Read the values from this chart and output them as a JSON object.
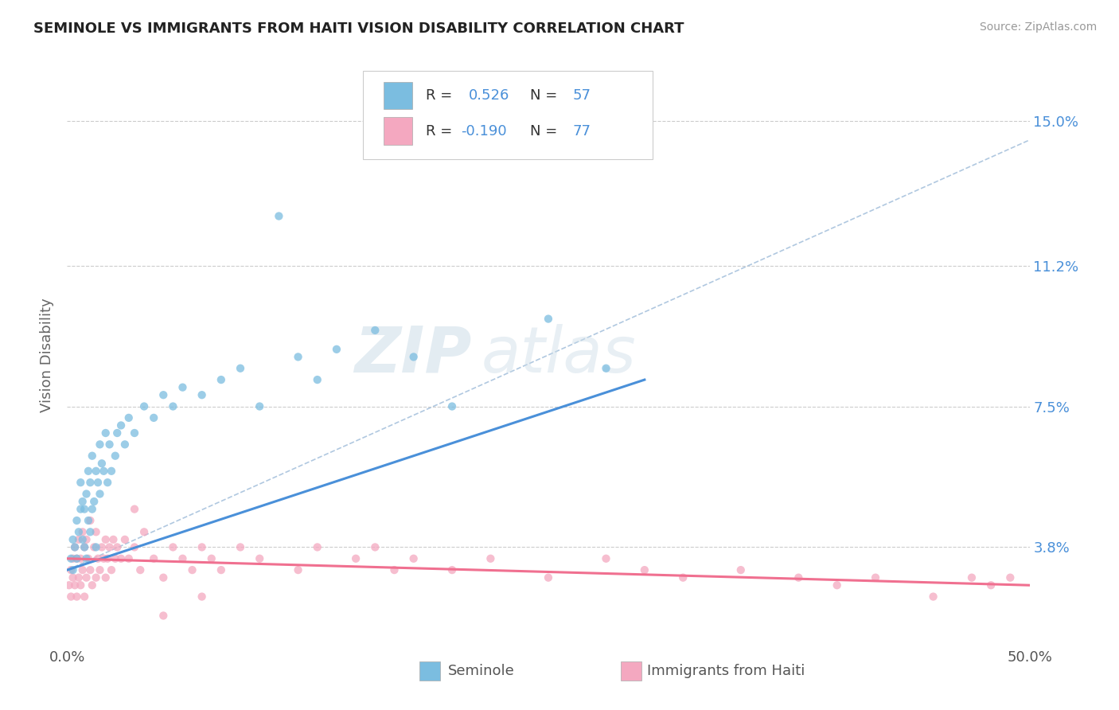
{
  "title": "SEMINOLE VS IMMIGRANTS FROM HAITI VISION DISABILITY CORRELATION CHART",
  "source": "Source: ZipAtlas.com",
  "ylabel": "Vision Disability",
  "xmin": 0.0,
  "xmax": 50.0,
  "ymin": 1.2,
  "ymax": 16.5,
  "yticks": [
    3.8,
    7.5,
    11.2,
    15.0
  ],
  "ytick_labels": [
    "3.8%",
    "7.5%",
    "11.2%",
    "15.0%"
  ],
  "gridline_y": [
    3.8,
    7.5,
    11.2,
    15.0
  ],
  "blue_color": "#7bbde0",
  "pink_color": "#f4a8c0",
  "blue_line_color": "#4a90d9",
  "pink_line_color": "#f07090",
  "dashed_line_color": "#b0c8e0",
  "watermark_zip": "ZIP",
  "watermark_atlas": "atlas",
  "seminole_x": [
    0.2,
    0.3,
    0.3,
    0.4,
    0.5,
    0.5,
    0.6,
    0.7,
    0.7,
    0.8,
    0.8,
    0.9,
    0.9,
    1.0,
    1.0,
    1.1,
    1.1,
    1.2,
    1.2,
    1.3,
    1.3,
    1.4,
    1.5,
    1.5,
    1.6,
    1.7,
    1.7,
    1.8,
    1.9,
    2.0,
    2.1,
    2.2,
    2.3,
    2.5,
    2.6,
    2.8,
    3.0,
    3.2,
    3.5,
    4.0,
    4.5,
    5.0,
    5.5,
    6.0,
    7.0,
    8.0,
    9.0,
    10.0,
    11.0,
    12.0,
    13.0,
    14.0,
    16.0,
    18.0,
    20.0,
    25.0,
    28.0
  ],
  "seminole_y": [
    3.5,
    3.2,
    4.0,
    3.8,
    3.5,
    4.5,
    4.2,
    4.8,
    5.5,
    4.0,
    5.0,
    3.8,
    4.8,
    3.5,
    5.2,
    4.5,
    5.8,
    4.2,
    5.5,
    4.8,
    6.2,
    5.0,
    3.8,
    5.8,
    5.5,
    5.2,
    6.5,
    6.0,
    5.8,
    6.8,
    5.5,
    6.5,
    5.8,
    6.2,
    6.8,
    7.0,
    6.5,
    7.2,
    6.8,
    7.5,
    7.2,
    7.8,
    7.5,
    8.0,
    7.8,
    8.2,
    8.5,
    7.5,
    12.5,
    8.8,
    8.2,
    9.0,
    9.5,
    8.8,
    7.5,
    9.8,
    8.5
  ],
  "haiti_x": [
    0.1,
    0.2,
    0.2,
    0.3,
    0.3,
    0.4,
    0.4,
    0.5,
    0.5,
    0.6,
    0.6,
    0.7,
    0.7,
    0.8,
    0.8,
    0.9,
    0.9,
    1.0,
    1.0,
    1.1,
    1.2,
    1.2,
    1.3,
    1.4,
    1.5,
    1.5,
    1.6,
    1.7,
    1.8,
    1.9,
    2.0,
    2.0,
    2.1,
    2.2,
    2.3,
    2.4,
    2.5,
    2.6,
    2.8,
    3.0,
    3.2,
    3.5,
    3.8,
    4.0,
    4.5,
    5.0,
    5.5,
    6.0,
    6.5,
    7.0,
    7.5,
    8.0,
    9.0,
    10.0,
    12.0,
    13.0,
    15.0,
    16.0,
    17.0,
    18.0,
    20.0,
    22.0,
    25.0,
    28.0,
    30.0,
    32.0,
    35.0,
    38.0,
    40.0,
    42.0,
    45.0,
    47.0,
    48.0,
    49.0,
    3.5,
    5.0,
    7.0
  ],
  "haiti_y": [
    2.8,
    2.5,
    3.2,
    3.0,
    3.5,
    2.8,
    3.8,
    2.5,
    3.5,
    3.0,
    4.0,
    2.8,
    3.5,
    3.2,
    4.2,
    2.5,
    3.8,
    3.0,
    4.0,
    3.5,
    3.2,
    4.5,
    2.8,
    3.8,
    3.0,
    4.2,
    3.5,
    3.2,
    3.8,
    3.5,
    3.0,
    4.0,
    3.5,
    3.8,
    3.2,
    4.0,
    3.5,
    3.8,
    3.5,
    4.0,
    3.5,
    3.8,
    3.2,
    4.2,
    3.5,
    3.0,
    3.8,
    3.5,
    3.2,
    3.8,
    3.5,
    3.2,
    3.8,
    3.5,
    3.2,
    3.8,
    3.5,
    3.8,
    3.2,
    3.5,
    3.2,
    3.5,
    3.0,
    3.5,
    3.2,
    3.0,
    3.2,
    3.0,
    2.8,
    3.0,
    2.5,
    3.0,
    2.8,
    3.0,
    4.8,
    2.0,
    2.5
  ],
  "blue_trend_x0": 0.0,
  "blue_trend_y0": 3.2,
  "blue_trend_x1": 30.0,
  "blue_trend_y1": 8.2,
  "pink_trend_x0": 0.0,
  "pink_trend_y0": 3.5,
  "pink_trend_x1": 50.0,
  "pink_trend_y1": 2.8,
  "dash_trend_x0": 0.0,
  "dash_trend_y0": 3.2,
  "dash_trend_x1": 50.0,
  "dash_trend_y1": 14.5
}
